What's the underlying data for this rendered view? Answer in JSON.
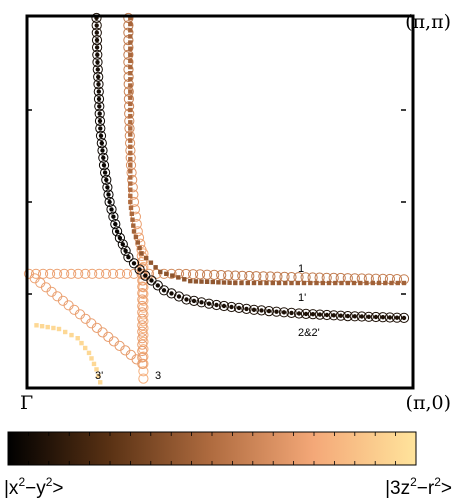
{
  "chart_data": {
    "type": "scatter",
    "title": "",
    "xlabel": "",
    "ylabel": "",
    "xlim": [
      0,
      1
    ],
    "ylim": [
      0,
      1
    ],
    "grid": false,
    "corner_labels": {
      "top_right": "(π,π)",
      "bottom_left": "Γ",
      "bottom_right": "(π,0)"
    },
    "series": [
      {
        "label": "1",
        "marker": "open-circle",
        "points": [
          {
            "x": 0.265,
            "y": 1.0,
            "c": 0.55
          },
          {
            "x": 0.265,
            "y": 0.9,
            "c": 0.57
          },
          {
            "x": 0.266,
            "y": 0.8,
            "c": 0.59
          },
          {
            "x": 0.268,
            "y": 0.7,
            "c": 0.62
          },
          {
            "x": 0.272,
            "y": 0.6,
            "c": 0.66
          },
          {
            "x": 0.28,
            "y": 0.5,
            "c": 0.7
          },
          {
            "x": 0.29,
            "y": 0.42,
            "c": 0.72
          },
          {
            "x": 0.3,
            "y": 0.37,
            "c": 0.72
          },
          {
            "x": 0.302,
            "y": 0.32,
            "c": 0.72
          },
          {
            "x": 0.302,
            "y": 0.27,
            "c": 0.71
          },
          {
            "x": 0.302,
            "y": 0.2,
            "c": 0.71
          },
          {
            "x": 0.302,
            "y": 0.13,
            "c": 0.71
          },
          {
            "x": 0.302,
            "y": 0.06,
            "c": 0.7
          },
          {
            "x": 0.0,
            "y": 0.305,
            "c": 0.72
          },
          {
            "x": 0.15,
            "y": 0.305,
            "c": 0.72
          },
          {
            "x": 0.28,
            "y": 0.305,
            "c": 0.72
          },
          {
            "x": 0.4,
            "y": 0.305,
            "c": 0.6
          },
          {
            "x": 0.55,
            "y": 0.3,
            "c": 0.55
          },
          {
            "x": 0.7,
            "y": 0.296,
            "c": 0.55
          },
          {
            "x": 0.85,
            "y": 0.293,
            "c": 0.56
          },
          {
            "x": 1.0,
            "y": 0.29,
            "c": 0.58
          }
        ]
      },
      {
        "label": "1'",
        "marker": "square-dot",
        "points": [
          {
            "x": 0.27,
            "y": 1.0,
            "c": 0.47
          },
          {
            "x": 0.27,
            "y": 0.9,
            "c": 0.48
          },
          {
            "x": 0.27,
            "y": 0.8,
            "c": 0.49
          },
          {
            "x": 0.27,
            "y": 0.7,
            "c": 0.5
          },
          {
            "x": 0.27,
            "y": 0.6,
            "c": 0.5
          },
          {
            "x": 0.27,
            "y": 0.5,
            "c": 0.5
          },
          {
            "x": 0.28,
            "y": 0.42,
            "c": 0.46
          },
          {
            "x": 0.3,
            "y": 0.36,
            "c": 0.42
          },
          {
            "x": 0.35,
            "y": 0.31,
            "c": 0.4
          },
          {
            "x": 0.43,
            "y": 0.285,
            "c": 0.4
          },
          {
            "x": 0.55,
            "y": 0.28,
            "c": 0.42
          },
          {
            "x": 0.7,
            "y": 0.28,
            "c": 0.44
          },
          {
            "x": 0.85,
            "y": 0.28,
            "c": 0.45
          },
          {
            "x": 1.0,
            "y": 0.28,
            "c": 0.46
          }
        ]
      },
      {
        "label": "2&2'",
        "marker": "open-circle-filled-dot",
        "points": [
          {
            "x": 0.18,
            "y": 1.0,
            "c": 0.08
          },
          {
            "x": 0.182,
            "y": 0.9,
            "c": 0.06
          },
          {
            "x": 0.186,
            "y": 0.8,
            "c": 0.05
          },
          {
            "x": 0.19,
            "y": 0.7,
            "c": 0.04
          },
          {
            "x": 0.2,
            "y": 0.6,
            "c": 0.03
          },
          {
            "x": 0.215,
            "y": 0.5,
            "c": 0.02
          },
          {
            "x": 0.235,
            "y": 0.42,
            "c": 0.02
          },
          {
            "x": 0.265,
            "y": 0.35,
            "c": 0.03
          },
          {
            "x": 0.31,
            "y": 0.3,
            "c": 0.04
          },
          {
            "x": 0.36,
            "y": 0.26,
            "c": 0.05
          },
          {
            "x": 0.42,
            "y": 0.235,
            "c": 0.06
          },
          {
            "x": 0.5,
            "y": 0.22,
            "c": 0.07
          },
          {
            "x": 0.6,
            "y": 0.207,
            "c": 0.08
          },
          {
            "x": 0.72,
            "y": 0.197,
            "c": 0.08
          },
          {
            "x": 0.85,
            "y": 0.19,
            "c": 0.08
          },
          {
            "x": 1.0,
            "y": 0.185,
            "c": 0.08
          }
        ]
      },
      {
        "label": "3",
        "marker": "open-circle",
        "points": [
          {
            "x": 0.305,
            "y": 0.36,
            "c": 0.78
          },
          {
            "x": 0.305,
            "y": 0.25,
            "c": 0.78
          },
          {
            "x": 0.305,
            "y": 0.12,
            "c": 0.78
          },
          {
            "x": 0.305,
            "y": 0.02,
            "c": 0.78
          }
        ]
      },
      {
        "label": "3'",
        "marker": "square-dot",
        "points": [
          {
            "x": 0.02,
            "y": 0.165,
            "c": 0.95
          },
          {
            "x": 0.08,
            "y": 0.155,
            "c": 0.95
          },
          {
            "x": 0.13,
            "y": 0.13,
            "c": 0.95
          },
          {
            "x": 0.16,
            "y": 0.09,
            "c": 0.95
          },
          {
            "x": 0.18,
            "y": 0.045,
            "c": 0.95
          },
          {
            "x": 0.19,
            "y": 0.01,
            "c": 0.95
          }
        ]
      }
    ],
    "colorbar": {
      "min_label": "|x²−y²>",
      "max_label": "|3z²−r²>",
      "stops": [
        "#000000",
        "#5a3214",
        "#b06c40",
        "#f4a878",
        "#ffe49c"
      ]
    }
  }
}
